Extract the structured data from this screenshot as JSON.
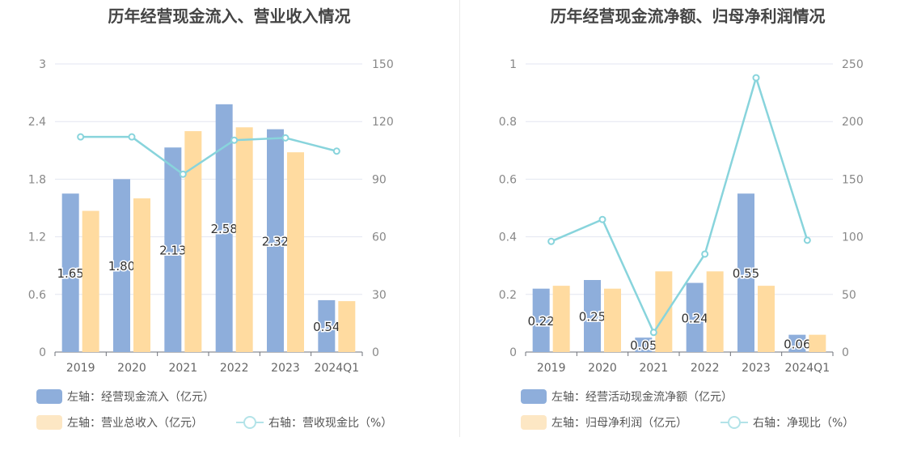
{
  "chart_data": [
    {
      "type": "bar",
      "title": "历年经营现金流入、营业收入情况",
      "categories": [
        "2019",
        "2020",
        "2021",
        "2022",
        "2023",
        "2024Q1"
      ],
      "ylim_left": [
        0,
        3
      ],
      "ylim_right": [
        0,
        150
      ],
      "left_ticks": [
        "0",
        "0.6",
        "1.2",
        "1.8",
        "2.4",
        "3"
      ],
      "right_ticks": [
        "0",
        "30",
        "60",
        "90",
        "120",
        "150"
      ],
      "grid": true,
      "series": [
        {
          "name": "左轴：经营现金流入（亿元）",
          "kind": "bar",
          "axis": "left",
          "color": "#8eaedb",
          "values": [
            1.65,
            1.8,
            2.13,
            2.58,
            2.32,
            0.54
          ],
          "labels": [
            "1.65",
            "1.80",
            "2.13",
            "2.58",
            "2.32",
            "0.54"
          ]
        },
        {
          "name": "左轴：营业总收入（亿元）",
          "kind": "bar",
          "axis": "left",
          "color": "#ffdba0",
          "values": [
            1.47,
            1.6,
            2.3,
            2.34,
            2.08,
            0.53
          ]
        },
        {
          "name": "右轴：营收现金比（%）",
          "kind": "line",
          "axis": "right",
          "color": "#88d4dc",
          "values": [
            112,
            112,
            92.6,
            110.3,
            111.5,
            104.6
          ]
        }
      ],
      "legend_position": "bottom"
    },
    {
      "type": "bar",
      "title": "历年经营现金流净额、归母净利润情况",
      "categories": [
        "2019",
        "2020",
        "2021",
        "2022",
        "2023",
        "2024Q1"
      ],
      "ylim_left": [
        0,
        1
      ],
      "ylim_right": [
        0,
        250
      ],
      "left_ticks": [
        "0",
        "0.2",
        "0.4",
        "0.6",
        "0.8",
        "1"
      ],
      "right_ticks": [
        "0",
        "50",
        "100",
        "150",
        "200",
        "250"
      ],
      "grid": true,
      "series": [
        {
          "name": "左轴：经营活动现金流净额（亿元）",
          "kind": "bar",
          "axis": "left",
          "color": "#8eaedb",
          "values": [
            0.22,
            0.25,
            0.05,
            0.24,
            0.55,
            0.06
          ],
          "labels": [
            "0.22",
            "0.25",
            "0.05",
            "0.24",
            "0.55",
            "0.06"
          ]
        },
        {
          "name": "左轴：归母净利润（亿元）",
          "kind": "bar",
          "axis": "left",
          "color": "#ffdba0",
          "values": [
            0.23,
            0.22,
            0.28,
            0.28,
            0.23,
            0.06
          ]
        },
        {
          "name": "右轴：净现比（%）",
          "kind": "line",
          "axis": "right",
          "color": "#88d4dc",
          "values": [
            96,
            115,
            17,
            85,
            238,
            97
          ]
        }
      ],
      "legend_position": "bottom"
    }
  ]
}
